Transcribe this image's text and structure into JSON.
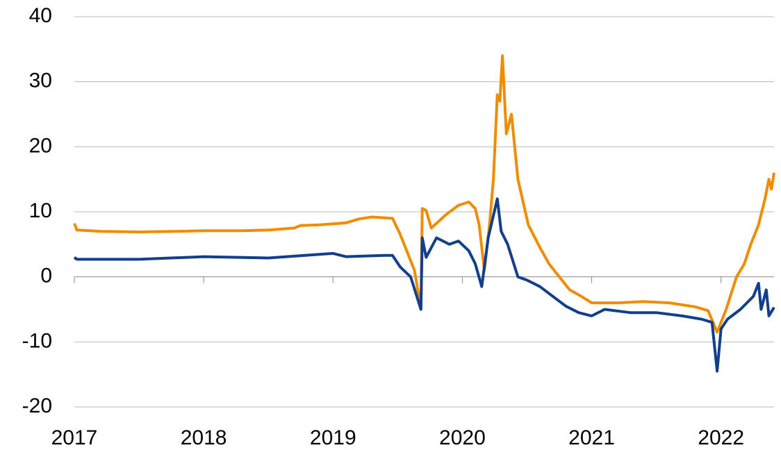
{
  "chart_data": {
    "type": "line",
    "xlim": [
      2017,
      2022.41
    ],
    "xticks": [
      2017,
      2018,
      2019,
      2020,
      2021,
      2022
    ],
    "ylim": [
      -20,
      40
    ],
    "yticks": [
      -20,
      -10,
      0,
      10,
      20,
      30,
      40
    ],
    "grid": true,
    "series": [
      {
        "color": "#f08c00",
        "x": [
          2017,
          2017.02,
          2017.2,
          2017.5,
          2017.8,
          2018.0,
          2018.3,
          2018.5,
          2018.7,
          2018.75,
          2018.9,
          2019.1,
          2019.2,
          2019.3,
          2019.46,
          2019.52,
          2019.58,
          2019.63,
          2019.66,
          2019.68,
          2019.69,
          2019.72,
          2019.76,
          2019.87,
          2019.97,
          2020.05,
          2020.1,
          2020.13,
          2020.17,
          2020.21,
          2020.24,
          2020.27,
          2020.29,
          2020.31,
          2020.34,
          2020.38,
          2020.43,
          2020.51,
          2020.6,
          2020.67,
          2020.75,
          2020.83,
          2020.92,
          2021.0,
          2021.2,
          2021.4,
          2021.6,
          2021.8,
          2021.9,
          2021.97,
          2022.04,
          2022.12,
          2022.18,
          2022.23,
          2022.29,
          2022.34,
          2022.37,
          2022.39,
          2022.41
        ],
        "values": [
          8.2,
          7.2,
          7.0,
          6.9,
          7.0,
          7.1,
          7.1,
          7.2,
          7.5,
          7.9,
          8.0,
          8.3,
          8.9,
          9.2,
          9.0,
          6.5,
          3.5,
          1.0,
          -2.5,
          -5,
          10.5,
          10.2,
          7.5,
          9.5,
          11,
          11.5,
          10.5,
          8,
          1,
          8,
          15,
          28,
          27,
          34,
          22,
          25,
          15,
          8,
          4.5,
          2,
          0,
          -2,
          -3,
          -4,
          -4,
          -3.8,
          -4,
          -4.6,
          -5.2,
          -8.5,
          -5,
          0,
          2,
          5,
          8,
          12,
          15,
          13.5,
          16
        ]
      },
      {
        "color": "#113f8c",
        "x": [
          2017,
          2017.02,
          2017.5,
          2018.0,
          2018.5,
          2019.0,
          2019.1,
          2019.4,
          2019.46,
          2019.52,
          2019.6,
          2019.68,
          2019.69,
          2019.72,
          2019.8,
          2019.9,
          2019.97,
          2020.05,
          2020.1,
          2020.15,
          2020.2,
          2020.27,
          2020.3,
          2020.35,
          2020.43,
          2020.5,
          2020.6,
          2020.7,
          2020.8,
          2020.9,
          2021.0,
          2021.1,
          2021.3,
          2021.5,
          2021.7,
          2021.85,
          2021.93,
          2021.97,
          2022.0,
          2022.05,
          2022.15,
          2022.2,
          2022.25,
          2022.29,
          2022.31,
          2022.35,
          2022.37,
          2022.41
        ],
        "values": [
          3.0,
          2.7,
          2.7,
          3.1,
          2.9,
          3.6,
          3.1,
          3.3,
          3.3,
          1.5,
          0,
          -5,
          6,
          3,
          6,
          5,
          5.5,
          4,
          2,
          -1.5,
          6,
          12,
          7,
          5,
          0,
          -0.5,
          -1.5,
          -3,
          -4.5,
          -5.5,
          -6,
          -5,
          -5.5,
          -5.5,
          -6,
          -6.5,
          -7,
          -14.5,
          -8,
          -6.5,
          -5,
          -4,
          -3,
          -1,
          -5,
          -2,
          -6,
          -4.7
        ]
      }
    ]
  }
}
